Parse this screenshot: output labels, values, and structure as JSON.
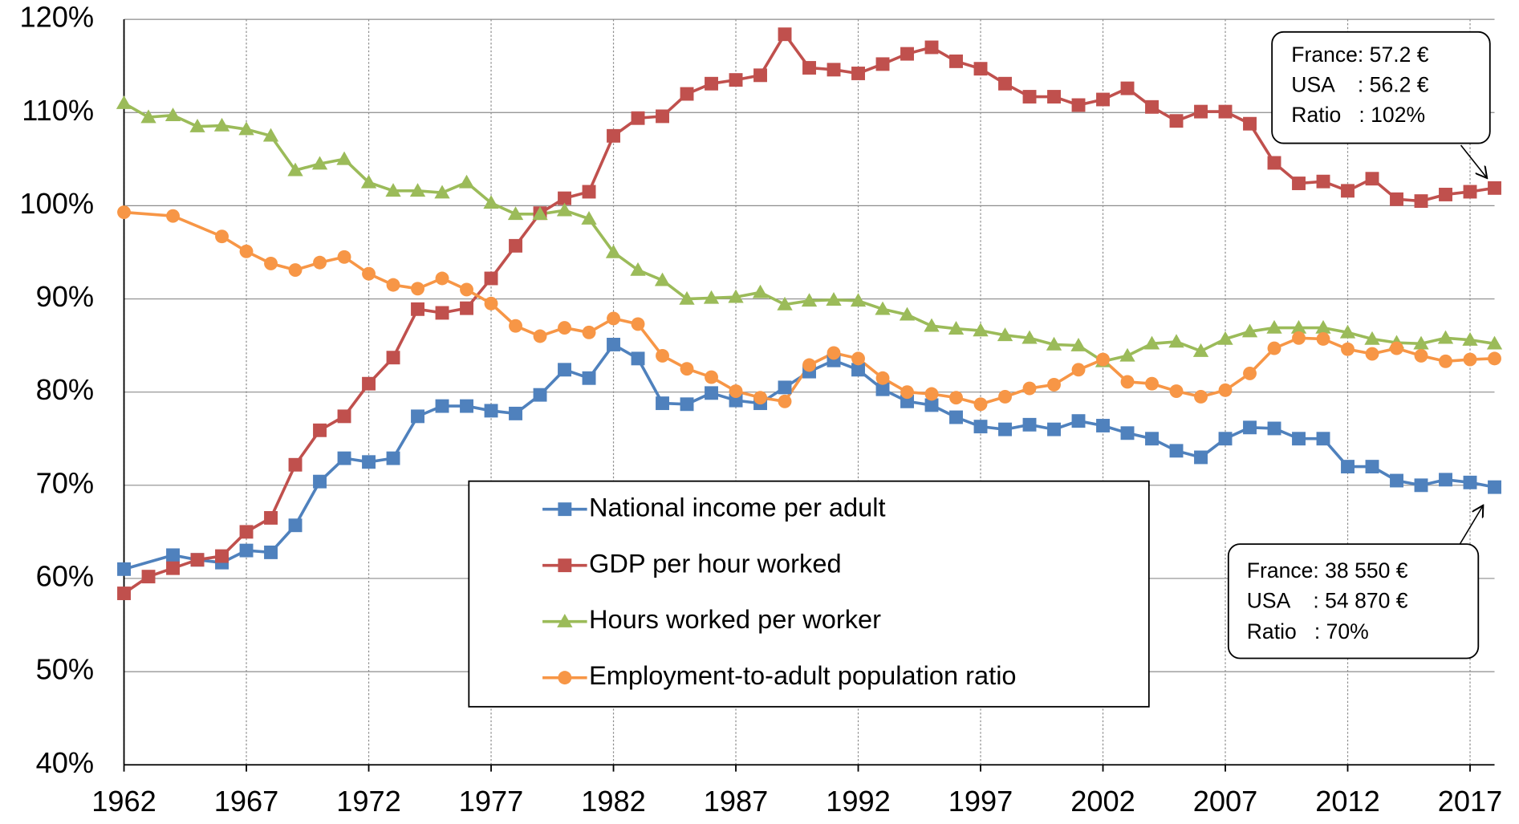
{
  "chart_data": {
    "type": "line",
    "xlim": [
      1962,
      2018
    ],
    "xticks": [
      1962,
      1967,
      1972,
      1977,
      1982,
      1987,
      1992,
      1997,
      2002,
      2007,
      2012,
      2017
    ],
    "ylim": [
      40,
      120
    ],
    "yticks": [
      {
        "value": 40,
        "label": "40%"
      },
      {
        "value": 50,
        "label": "50%"
      },
      {
        "value": 60,
        "label": "60%"
      },
      {
        "value": 70,
        "label": "70%"
      },
      {
        "value": 80,
        "label": "80%"
      },
      {
        "value": 90,
        "label": "90%"
      },
      {
        "value": 100,
        "label": "100%"
      },
      {
        "value": 110,
        "label": "110%"
      },
      {
        "value": 120,
        "label": "120%"
      }
    ],
    "grid": true,
    "series": [
      {
        "name": "National income per adult",
        "color": "#4f81bd",
        "marker": "square",
        "x": [
          1962,
          1964,
          1965,
          1966,
          1967,
          1968,
          1969,
          1970,
          1971,
          1972,
          1973,
          1974,
          1975,
          1976,
          1977,
          1978,
          1979,
          1980,
          1981,
          1982,
          1983,
          1984,
          1985,
          1986,
          1987,
          1988,
          1989,
          1990,
          1991,
          1992,
          1993,
          1994,
          1995,
          1996,
          1997,
          1998,
          1999,
          2000,
          2001,
          2002,
          2003,
          2004,
          2005,
          2006,
          2007,
          2008,
          2009,
          2010,
          2011,
          2012,
          2013,
          2014,
          2015,
          2016,
          2017,
          2018
        ],
        "values": [
          61,
          62.5,
          62,
          61.7,
          63,
          62.8,
          65.7,
          70.4,
          72.9,
          72.5,
          72.9,
          77.4,
          78.5,
          78.5,
          78,
          77.7,
          79.7,
          82.4,
          81.5,
          85.1,
          83.6,
          78.8,
          78.7,
          79.9,
          79.1,
          78.8,
          80.5,
          82.2,
          83.4,
          82.4,
          80.3,
          79,
          78.6,
          77.3,
          76.3,
          76,
          76.5,
          76,
          76.9,
          76.4,
          75.6,
          75,
          73.7,
          73,
          75,
          76.2,
          76.1,
          75,
          75,
          72,
          72,
          70.5,
          70,
          70.6,
          70.3,
          69.8
        ]
      },
      {
        "name": "GDP per hour worked",
        "color": "#c0504d",
        "marker": "square",
        "x": [
          1962,
          1963,
          1964,
          1965,
          1966,
          1967,
          1968,
          1969,
          1970,
          1971,
          1972,
          1973,
          1974,
          1975,
          1976,
          1977,
          1978,
          1979,
          1980,
          1981,
          1982,
          1983,
          1984,
          1985,
          1986,
          1987,
          1988,
          1989,
          1990,
          1991,
          1992,
          1993,
          1994,
          1995,
          1996,
          1997,
          1998,
          1999,
          2000,
          2001,
          2002,
          2003,
          2004,
          2005,
          2006,
          2007,
          2008,
          2009,
          2010,
          2011,
          2012,
          2013,
          2014,
          2015,
          2016,
          2017,
          2018
        ],
        "values": [
          58.4,
          60.2,
          61.1,
          62,
          62.4,
          65,
          66.5,
          72.2,
          75.9,
          77.4,
          80.9,
          83.7,
          88.9,
          88.5,
          89,
          92.2,
          95.7,
          99.2,
          100.8,
          101.5,
          107.5,
          109.4,
          109.6,
          112,
          113.1,
          113.5,
          114,
          118.4,
          114.8,
          114.6,
          114.2,
          115.2,
          116.3,
          117,
          115.5,
          114.7,
          113.1,
          111.7,
          111.7,
          110.8,
          111.4,
          112.6,
          110.6,
          109.1,
          110.1,
          110.1,
          108.8,
          104.6,
          102.4,
          102.6,
          101.6,
          102.9,
          100.7,
          100.5,
          101.2,
          101.5,
          101.9
        ]
      },
      {
        "name": "Hours worked per worker",
        "color": "#9bbb59",
        "marker": "triangle",
        "x": [
          1962,
          1963,
          1964,
          1965,
          1966,
          1967,
          1968,
          1969,
          1970,
          1971,
          1972,
          1973,
          1974,
          1975,
          1976,
          1977,
          1978,
          1979,
          1980,
          1981,
          1982,
          1983,
          1984,
          1985,
          1986,
          1987,
          1988,
          1989,
          1990,
          1991,
          1992,
          1993,
          1994,
          1995,
          1996,
          1997,
          1998,
          1999,
          2000,
          2001,
          2002,
          2003,
          2004,
          2005,
          2006,
          2007,
          2008,
          2009,
          2010,
          2011,
          2012,
          2013,
          2014,
          2015,
          2016,
          2017,
          2018
        ],
        "values": [
          111,
          109.5,
          109.7,
          108.5,
          108.6,
          108.2,
          107.5,
          103.8,
          104.5,
          105,
          102.5,
          101.6,
          101.6,
          101.4,
          102.5,
          100.3,
          99.1,
          99.1,
          99.5,
          98.6,
          95,
          93.1,
          92,
          90,
          90.1,
          90.2,
          90.7,
          89.4,
          89.8,
          89.9,
          89.8,
          88.9,
          88.3,
          87.1,
          86.8,
          86.6,
          86.1,
          85.8,
          85.1,
          85,
          83.3,
          83.9,
          85.2,
          85.4,
          84.4,
          85.7,
          86.5,
          86.9,
          86.9,
          86.9,
          86.4,
          85.7,
          85.3,
          85.2,
          85.8,
          85.6,
          85.2
        ]
      },
      {
        "name": "Employment-to-adult population ratio",
        "color": "#f79646",
        "marker": "circle",
        "x": [
          1962,
          1964,
          1966,
          1967,
          1968,
          1969,
          1970,
          1971,
          1972,
          1973,
          1974,
          1975,
          1976,
          1977,
          1978,
          1979,
          1980,
          1981,
          1982,
          1983,
          1984,
          1985,
          1986,
          1987,
          1988,
          1989,
          1990,
          1991,
          1992,
          1993,
          1994,
          1995,
          1996,
          1997,
          1998,
          1999,
          2000,
          2001,
          2002,
          2003,
          2004,
          2005,
          2006,
          2007,
          2008,
          2009,
          2010,
          2011,
          2012,
          2013,
          2014,
          2015,
          2016,
          2017,
          2018
        ],
        "values": [
          99.3,
          98.9,
          96.7,
          95.1,
          93.8,
          93.1,
          93.9,
          94.5,
          92.7,
          91.5,
          91.1,
          92.2,
          91,
          89.5,
          87.1,
          86,
          86.9,
          86.4,
          87.9,
          87.3,
          83.9,
          82.5,
          81.6,
          80.1,
          79.4,
          79,
          82.9,
          84.2,
          83.6,
          81.5,
          80,
          79.8,
          79.4,
          78.7,
          79.5,
          80.4,
          80.8,
          82.4,
          83.5,
          81.1,
          80.9,
          80.1,
          79.5,
          80.2,
          82,
          84.7,
          85.8,
          85.7,
          84.6,
          84.1,
          84.7,
          83.9,
          83.3,
          83.5,
          83.6
        ]
      }
    ],
    "annotations": [
      {
        "lines": [
          "France: 57.2 €",
          "USA    : 56.2 €",
          "Ratio   : 102%"
        ]
      },
      {
        "lines": [
          "France: 38 550 €",
          "USA    : 54 870 €",
          "Ratio   : 70%"
        ]
      }
    ]
  }
}
